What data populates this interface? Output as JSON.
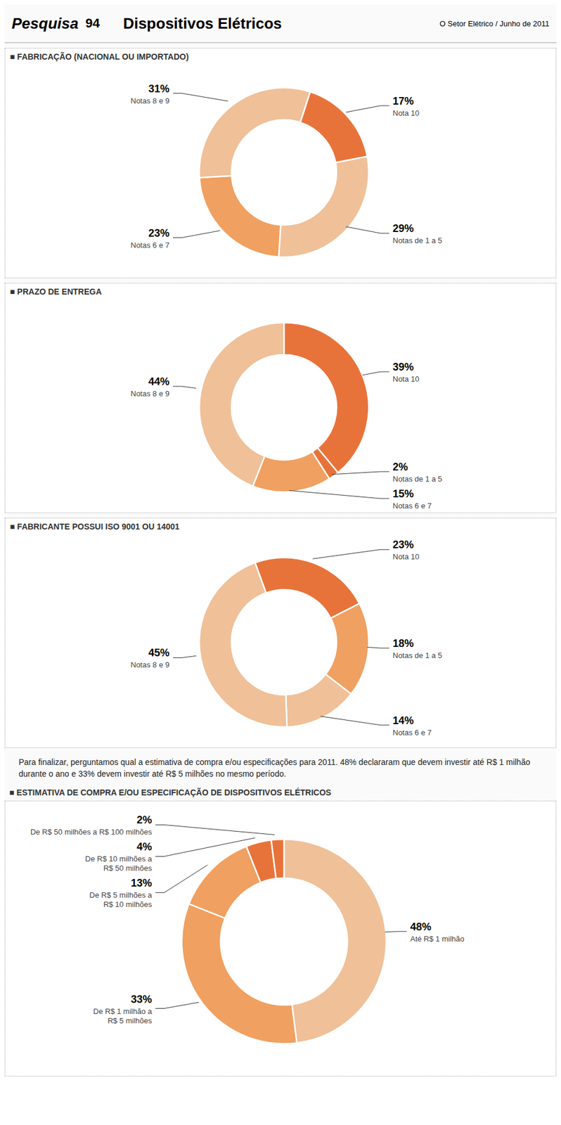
{
  "title": "Dispositivos Elétricos",
  "subtitle": "O Setor Elétrico / Junho de 2011",
  "annotations": [
    "Pesquisa",
    "94",
    "Para finalizar, perguntamos qual a estimativa de compra e/ou especificações para 2011. 48% declararam que devem investir até R$ 1 milhão durante o ano e 33% devem investir até R$ 5 milhões no mesmo período."
  ],
  "chart_data": [
    {
      "type": "pie",
      "title": "■ FABRICAÇÃO (NACIONAL OU IMPORTADO)",
      "categories": [
        "Nota 10",
        "Notas de 1 a 5",
        "Notas 6 e 7",
        "Notas 8 e 9"
      ],
      "values": [
        17,
        29,
        23,
        31
      ],
      "value_labels": [
        "17%",
        "29%",
        "23%",
        "31%"
      ],
      "colors": [
        "#E8733A",
        "#F0C098",
        "#F0A060",
        "#F0C098"
      ],
      "data_labels": true
    },
    {
      "type": "pie",
      "title": "■ PRAZO DE ENTREGA",
      "categories": [
        "Nota 10",
        "Notas de 1 a 5",
        "Notas 6 e 7",
        "Notas 8 e 9"
      ],
      "values": [
        39,
        2,
        15,
        44
      ],
      "value_labels": [
        "39%",
        "2%",
        "15%",
        "44%"
      ],
      "colors": [
        "#E8733A",
        "#E8733A",
        "#F0A060",
        "#F0C098"
      ],
      "data_labels": true
    },
    {
      "type": "pie",
      "title": "■ FABRICANTE POSSUI ISO 9001 OU 14001",
      "categories": [
        "Nota 10",
        "Notas de 1 a 5",
        "Notas 6 e 7",
        "Notas 8 e 9"
      ],
      "values": [
        23,
        18,
        14,
        45
      ],
      "value_labels": [
        "23%",
        "18%",
        "14%",
        "45%"
      ],
      "colors": [
        "#E8733A",
        "#F0A060",
        "#F0C098",
        "#F0C098"
      ],
      "data_labels": true
    },
    {
      "type": "pie",
      "title": "■ ESTIMATIVA DE COMPRA E/OU ESPECIFICAÇÃO DE DISPOSITIVOS ELÉTRICOS",
      "categories": [
        "Até R$ 1 milhão",
        "De R$ 1 milhão a\nR$ 5 milhões",
        "De R$ 5 milhões a\nR$ 10 milhões",
        "De R$ 10 milhões a\nR$ 50 milhões",
        "De R$ 50 milhões a R$ 100 milhões"
      ],
      "values": [
        48,
        33,
        13,
        4,
        2
      ],
      "value_labels": [
        "48%",
        "33%",
        "13%",
        "4%",
        "2%"
      ],
      "colors": [
        "#F0C098",
        "#F0A060",
        "#F0A060",
        "#E8733A",
        "#E8733A"
      ],
      "data_labels": true
    }
  ]
}
